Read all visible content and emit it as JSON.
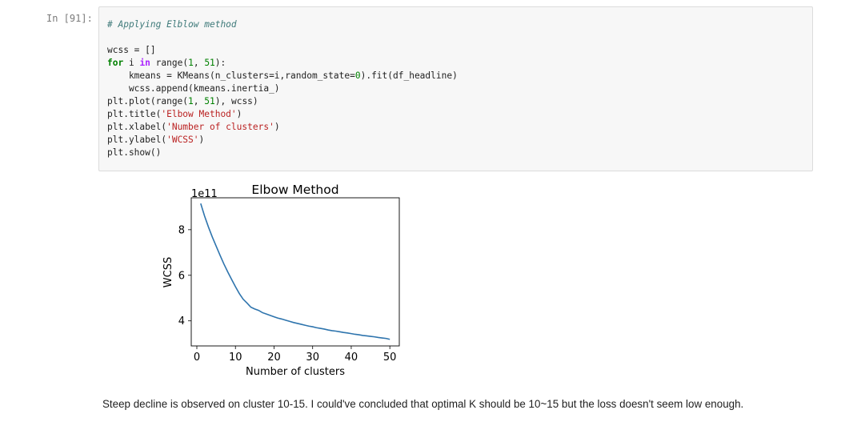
{
  "cell": {
    "prompt": "In [91]:",
    "code_lines": [
      [
        {
          "t": "# Applying Elblow method",
          "c": "comment"
        }
      ],
      [],
      [
        {
          "t": "wcss = []",
          "c": ""
        }
      ],
      [
        {
          "t": "for",
          "c": "kw"
        },
        {
          "t": " i ",
          "c": ""
        },
        {
          "t": "in",
          "c": "op"
        },
        {
          "t": " range(",
          "c": ""
        },
        {
          "t": "1",
          "c": "num"
        },
        {
          "t": ", ",
          "c": ""
        },
        {
          "t": "51",
          "c": "num"
        },
        {
          "t": "):",
          "c": ""
        }
      ],
      [
        {
          "t": "    kmeans = KMeans(n_clusters=i,random_state=",
          "c": ""
        },
        {
          "t": "0",
          "c": "num"
        },
        {
          "t": ").fit(df_headline)",
          "c": ""
        }
      ],
      [
        {
          "t": "    wcss.append(kmeans.inertia_)",
          "c": ""
        }
      ],
      [
        {
          "t": "plt.plot(range(",
          "c": ""
        },
        {
          "t": "1",
          "c": "num"
        },
        {
          "t": ", ",
          "c": ""
        },
        {
          "t": "51",
          "c": "num"
        },
        {
          "t": "), wcss)",
          "c": ""
        }
      ],
      [
        {
          "t": "plt.title(",
          "c": ""
        },
        {
          "t": "'Elbow Method'",
          "c": "str"
        },
        {
          "t": ")",
          "c": ""
        }
      ],
      [
        {
          "t": "plt.xlabel(",
          "c": ""
        },
        {
          "t": "'Number of clusters'",
          "c": "str"
        },
        {
          "t": ")",
          "c": ""
        }
      ],
      [
        {
          "t": "plt.ylabel(",
          "c": ""
        },
        {
          "t": "'WCSS'",
          "c": "str"
        },
        {
          "t": ")",
          "c": ""
        }
      ],
      [
        {
          "t": "plt.show()",
          "c": ""
        }
      ]
    ]
  },
  "chart_data": {
    "type": "line",
    "title": "Elbow Method",
    "xlabel": "Number of clusters",
    "ylabel": "WCSS",
    "offset_text": "1e11",
    "xlim": [
      -1.45,
      52.45
    ],
    "ylim": [
      2.9,
      9.4
    ],
    "x_ticks": [
      0,
      10,
      20,
      30,
      40,
      50
    ],
    "y_ticks": [
      4,
      6,
      8
    ],
    "y_tick_labels": [
      "4",
      "6",
      "8"
    ],
    "line_color": "#2e74ad",
    "series": [
      {
        "x": [
          1,
          2,
          3,
          4,
          5,
          6,
          7,
          8,
          9,
          10,
          11,
          12,
          13,
          14,
          15,
          16,
          17,
          18,
          19,
          20,
          21,
          22,
          23,
          24,
          25,
          26,
          27,
          28,
          29,
          30,
          31,
          32,
          33,
          34,
          35,
          36,
          37,
          38,
          39,
          40,
          41,
          42,
          43,
          44,
          45,
          46,
          47,
          48,
          49,
          50
        ],
        "values": [
          9.15,
          8.6,
          8.12,
          7.68,
          7.28,
          6.88,
          6.5,
          6.15,
          5.82,
          5.5,
          5.2,
          4.95,
          4.78,
          4.6,
          4.52,
          4.46,
          4.36,
          4.3,
          4.24,
          4.18,
          4.12,
          4.08,
          4.03,
          3.98,
          3.93,
          3.89,
          3.85,
          3.81,
          3.77,
          3.74,
          3.7,
          3.67,
          3.64,
          3.6,
          3.57,
          3.55,
          3.52,
          3.49,
          3.47,
          3.44,
          3.41,
          3.39,
          3.36,
          3.34,
          3.32,
          3.3,
          3.27,
          3.25,
          3.23,
          3.19
        ]
      }
    ]
  },
  "markdown": {
    "text": "Steep decline is observed on cluster 10-15. I could've concluded that optimal K should be 10~15 but the loss doesn't seem low enough."
  }
}
